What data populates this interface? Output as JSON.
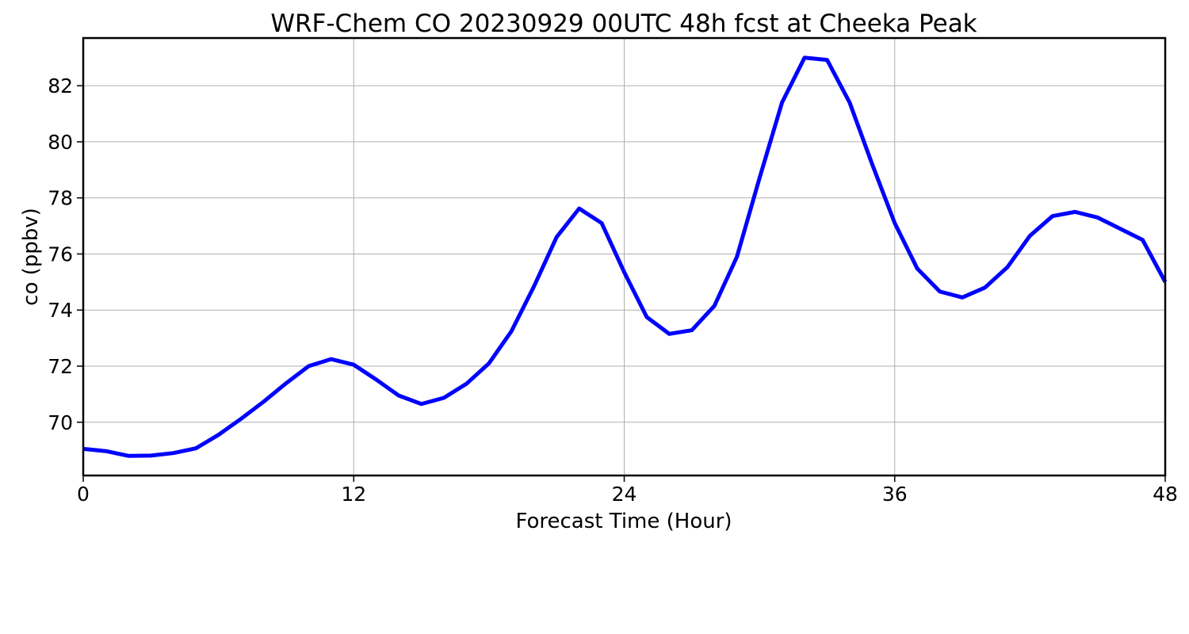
{
  "chart_data": {
    "type": "line",
    "title": "WRF-Chem CO  20230929 00UTC 48h fcst at Cheeka Peak",
    "xlabel": "Forecast Time (Hour)",
    "ylabel": "co  (ppbv)",
    "xlim": [
      0,
      48
    ],
    "ylim": [
      68.1,
      83.7
    ],
    "xticks": [
      0,
      12,
      24,
      36,
      48
    ],
    "yticks": [
      70,
      72,
      74,
      76,
      78,
      80,
      82
    ],
    "grid": true,
    "legend": "none",
    "series": [
      {
        "color": "#0000ff",
        "x": [
          0,
          1,
          2,
          3,
          4,
          5,
          6,
          7,
          8,
          9,
          10,
          11,
          12,
          13,
          14,
          15,
          16,
          17,
          18,
          19,
          20,
          21,
          22,
          23,
          24,
          25,
          26,
          27,
          28,
          29,
          30,
          31,
          32,
          33,
          34,
          35,
          36,
          37,
          38,
          39,
          40,
          41,
          42,
          43,
          44,
          45,
          46,
          47,
          48
        ],
        "y": [
          69.05,
          68.97,
          68.8,
          68.81,
          68.9,
          69.07,
          69.55,
          70.12,
          70.73,
          71.39,
          72.0,
          72.25,
          72.05,
          71.52,
          70.95,
          70.65,
          70.87,
          71.37,
          72.1,
          73.25,
          74.85,
          76.6,
          77.62,
          77.1,
          75.35,
          73.75,
          73.15,
          73.28,
          74.15,
          75.9,
          78.7,
          81.4,
          83.0,
          82.92,
          81.4,
          79.2,
          77.1,
          75.48,
          74.66,
          74.45,
          74.8,
          75.53,
          76.65,
          77.35,
          77.5,
          77.3,
          76.9,
          76.5,
          75.0
        ]
      }
    ]
  }
}
